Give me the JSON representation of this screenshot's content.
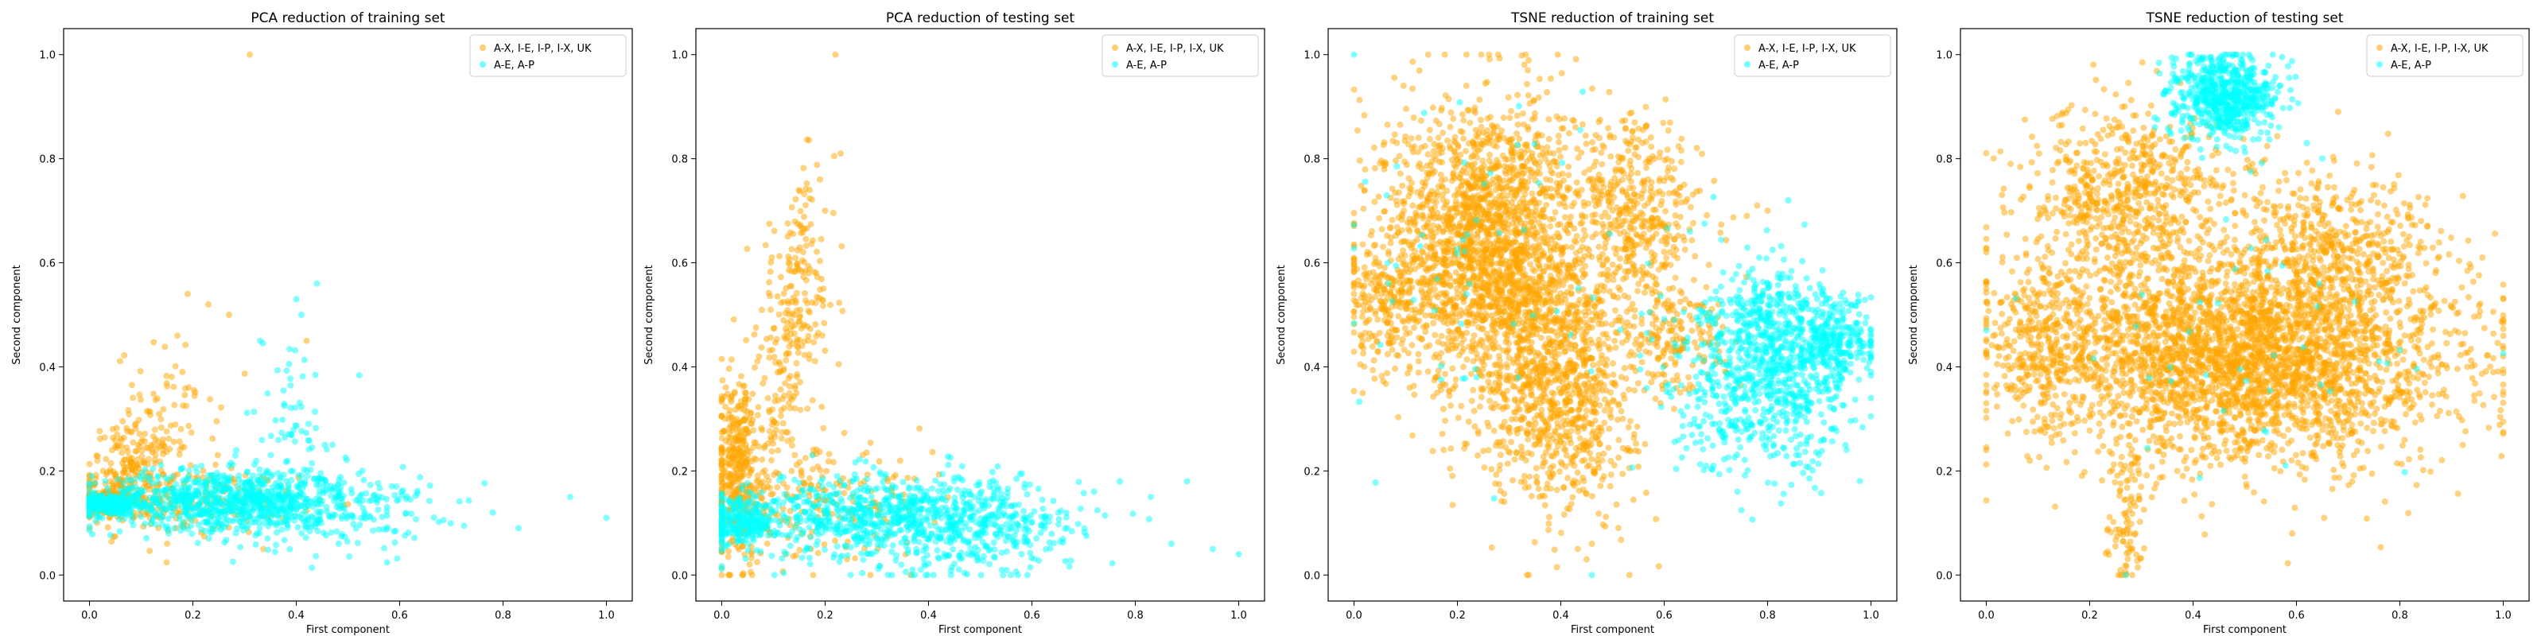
{
  "figure": {
    "background": "#ffffff"
  },
  "legend_colors": {
    "class_a": "#ffa500",
    "class_b": "#00ffff"
  },
  "chart_data": [
    {
      "type": "scatter",
      "title": "PCA reduction of training set",
      "xlabel": "First component",
      "ylabel": "Second component",
      "xlim": [
        -0.05,
        1.05
      ],
      "ylim": [
        -0.05,
        1.05
      ],
      "xticks": [
        "0.0",
        "0.2",
        "0.4",
        "0.6",
        "0.8",
        "1.0"
      ],
      "yticks": [
        "0.0",
        "0.2",
        "0.4",
        "0.6",
        "0.8",
        "1.0"
      ],
      "legend_loc": "upper right",
      "series": [
        {
          "name": "A-X, I-E, I-P, I-X, UK",
          "color": "#ffa500",
          "clusters": [
            {
              "cx": 0.03,
              "cy": 0.14,
              "sx": 0.025,
              "sy": 0.012,
              "n": 260
            },
            {
              "cx": 0.08,
              "cy": 0.19,
              "sx": 0.04,
              "sy": 0.05,
              "n": 220
            },
            {
              "cx": 0.15,
              "cy": 0.28,
              "sx": 0.05,
              "sy": 0.08,
              "n": 90
            },
            {
              "cx": 0.2,
              "cy": 0.14,
              "sx": 0.1,
              "sy": 0.03,
              "n": 160
            }
          ],
          "points": [
            [
              0.31,
              1.0
            ],
            [
              0.19,
              0.54
            ],
            [
              0.23,
              0.52
            ],
            [
              0.27,
              0.5
            ],
            [
              0.17,
              0.46
            ],
            [
              0.42,
              0.45
            ]
          ]
        },
        {
          "name": "A-E, A-P",
          "color": "#00ffff",
          "clusters": [
            {
              "cx": 0.04,
              "cy": 0.135,
              "sx": 0.03,
              "sy": 0.01,
              "n": 250
            },
            {
              "cx": 0.25,
              "cy": 0.145,
              "sx": 0.12,
              "sy": 0.028,
              "n": 700
            },
            {
              "cx": 0.42,
              "cy": 0.13,
              "sx": 0.12,
              "sy": 0.04,
              "n": 320
            },
            {
              "cx": 0.4,
              "cy": 0.28,
              "sx": 0.05,
              "sy": 0.09,
              "n": 70
            }
          ],
          "points": [
            [
              0.93,
              0.15
            ],
            [
              1.0,
              0.11
            ],
            [
              0.83,
              0.09
            ],
            [
              0.78,
              0.12
            ],
            [
              0.44,
              0.56
            ],
            [
              0.4,
              0.53
            ],
            [
              0.41,
              0.5
            ],
            [
              0.33,
              0.45
            ]
          ]
        }
      ]
    },
    {
      "type": "scatter",
      "title": "PCA reduction of testing set",
      "xlabel": "First component",
      "ylabel": "Second component",
      "xlim": [
        -0.05,
        1.05
      ],
      "ylim": [
        -0.05,
        1.05
      ],
      "xticks": [
        "0.0",
        "0.2",
        "0.4",
        "0.6",
        "0.8",
        "1.0"
      ],
      "yticks": [
        "0.0",
        "0.2",
        "0.4",
        "0.6",
        "0.8",
        "1.0"
      ],
      "legend_loc": "upper right",
      "series": [
        {
          "name": "A-X, I-E, I-P, I-X, UK",
          "color": "#ffa500",
          "clusters": [
            {
              "cx": 0.03,
              "cy": 0.2,
              "sx": 0.025,
              "sy": 0.09,
              "n": 400
            },
            {
              "cx": 0.12,
              "cy": 0.38,
              "sx": 0.035,
              "sy": 0.14,
              "n": 180
            },
            {
              "cx": 0.16,
              "cy": 0.58,
              "sx": 0.03,
              "sy": 0.1,
              "n": 110
            },
            {
              "cx": 0.2,
              "cy": 0.14,
              "sx": 0.1,
              "sy": 0.05,
              "n": 160
            }
          ],
          "points": [
            [
              0.22,
              1.0
            ],
            [
              0.23,
              0.81
            ],
            [
              0.19,
              0.76
            ],
            [
              0.17,
              0.74
            ],
            [
              0.2,
              0.7
            ]
          ]
        },
        {
          "name": "A-E, A-P",
          "color": "#00ffff",
          "clusters": [
            {
              "cx": 0.04,
              "cy": 0.1,
              "sx": 0.03,
              "sy": 0.02,
              "n": 220
            },
            {
              "cx": 0.3,
              "cy": 0.11,
              "sx": 0.14,
              "sy": 0.04,
              "n": 700
            },
            {
              "cx": 0.5,
              "cy": 0.09,
              "sx": 0.1,
              "sy": 0.05,
              "n": 300
            }
          ],
          "points": [
            [
              0.72,
              0.16
            ],
            [
              0.77,
              0.18
            ],
            [
              0.83,
              0.15
            ],
            [
              0.9,
              0.18
            ],
            [
              0.95,
              0.05
            ],
            [
              1.0,
              0.04
            ],
            [
              0.87,
              0.06
            ]
          ]
        }
      ]
    },
    {
      "type": "scatter",
      "title": "TSNE reduction of training set",
      "xlabel": "First component",
      "ylabel": "Second component",
      "xlim": [
        -0.05,
        1.05
      ],
      "ylim": [
        -0.05,
        1.05
      ],
      "xticks": [
        "0.0",
        "0.2",
        "0.4",
        "0.6",
        "0.8",
        "1.0"
      ],
      "yticks": [
        "0.0",
        "0.2",
        "0.4",
        "0.6",
        "0.8",
        "1.0"
      ],
      "legend_loc": "upper right",
      "series": [
        {
          "name": "A-X, I-E, I-P, I-X, UK",
          "color": "#ffa500",
          "clusters": [
            {
              "cx": 0.26,
              "cy": 0.63,
              "sx": 0.1,
              "sy": 0.14,
              "n": 2200
            },
            {
              "cx": 0.4,
              "cy": 0.36,
              "sx": 0.07,
              "sy": 0.12,
              "n": 900
            },
            {
              "cx": 0.06,
              "cy": 0.53,
              "sx": 0.04,
              "sy": 0.06,
              "n": 200
            },
            {
              "cx": 0.55,
              "cy": 0.68,
              "sx": 0.06,
              "sy": 0.1,
              "n": 450
            },
            {
              "cx": 0.62,
              "cy": 0.45,
              "sx": 0.05,
              "sy": 0.05,
              "n": 160
            }
          ],
          "points": [
            [
              0.78,
              0.71
            ],
            [
              0.8,
              0.7
            ],
            [
              0.76,
              0.69
            ],
            [
              0.45,
              0.03
            ],
            [
              0.46,
              0.06
            ]
          ]
        },
        {
          "name": "A-E, A-P",
          "color": "#00ffff",
          "clusters": [
            {
              "cx": 0.8,
              "cy": 0.38,
              "sx": 0.09,
              "sy": 0.09,
              "n": 800
            },
            {
              "cx": 0.93,
              "cy": 0.45,
              "sx": 0.04,
              "sy": 0.04,
              "n": 250
            },
            {
              "cx": 0.8,
              "cy": 0.5,
              "sx": 0.04,
              "sy": 0.05,
              "n": 150
            },
            {
              "cx": 0.3,
              "cy": 0.6,
              "sx": 0.18,
              "sy": 0.18,
              "n": 60
            }
          ],
          "points": [
            [
              0.46,
              0.0
            ],
            [
              0.84,
              0.72
            ],
            [
              0.65,
              0.66
            ]
          ]
        }
      ]
    },
    {
      "type": "scatter",
      "title": "TSNE reduction of testing set",
      "xlabel": "First component",
      "ylabel": "Second component",
      "xlim": [
        -0.05,
        1.05
      ],
      "ylim": [
        -0.05,
        1.05
      ],
      "xticks": [
        "0.0",
        "0.2",
        "0.4",
        "0.6",
        "0.8",
        "1.0"
      ],
      "yticks": [
        "0.0",
        "0.2",
        "0.4",
        "0.6",
        "0.8",
        "1.0"
      ],
      "legend_loc": "upper right",
      "series": [
        {
          "name": "A-X, I-E, I-P, I-X, UK",
          "color": "#ffa500",
          "clusters": [
            {
              "cx": 0.5,
              "cy": 0.42,
              "sx": 0.2,
              "sy": 0.1,
              "n": 3200
            },
            {
              "cx": 0.28,
              "cy": 0.72,
              "sx": 0.1,
              "sy": 0.09,
              "n": 700
            },
            {
              "cx": 0.68,
              "cy": 0.62,
              "sx": 0.1,
              "sy": 0.08,
              "n": 500
            },
            {
              "cx": 0.12,
              "cy": 0.45,
              "sx": 0.05,
              "sy": 0.08,
              "n": 300
            },
            {
              "cx": 0.27,
              "cy": 0.12,
              "sx": 0.02,
              "sy": 0.07,
              "n": 100
            }
          ],
          "points": [
            [
              0.26,
              0.0
            ],
            [
              0.0,
              0.55
            ],
            [
              0.75,
              0.73
            ],
            [
              0.77,
              0.71
            ]
          ]
        },
        {
          "name": "A-E, A-P",
          "color": "#00ffff",
          "clusters": [
            {
              "cx": 0.46,
              "cy": 0.92,
              "sx": 0.05,
              "sy": 0.04,
              "n": 650
            },
            {
              "cx": 0.5,
              "cy": 0.45,
              "sx": 0.2,
              "sy": 0.15,
              "n": 40
            }
          ],
          "points": [
            [
              0.27,
              0.0
            ],
            [
              0.0,
              0.47
            ],
            [
              0.62,
              0.83
            ],
            [
              0.65,
              0.8
            ]
          ]
        }
      ]
    }
  ]
}
